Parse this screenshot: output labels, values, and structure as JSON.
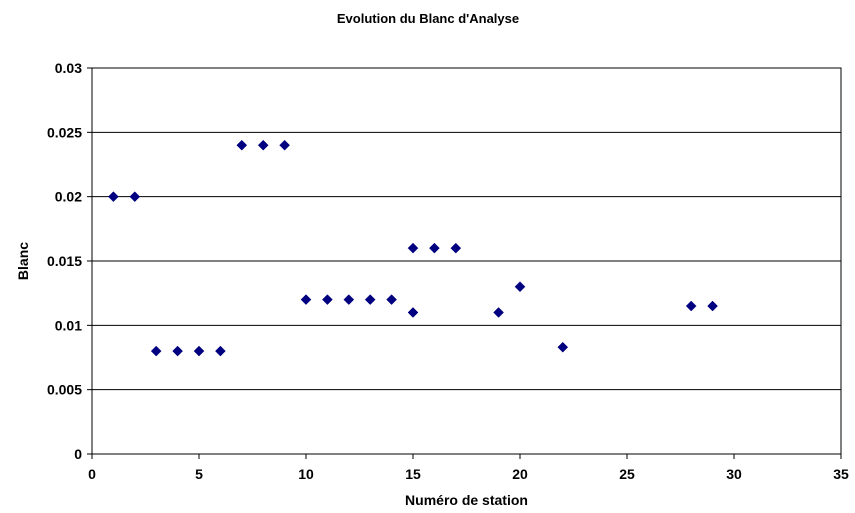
{
  "chart_data": {
    "type": "scatter",
    "title": "Evolution du Blanc d'Analyse",
    "xlabel": "Numéro de station",
    "ylabel": "Blanc",
    "xlim": [
      0,
      35
    ],
    "ylim": [
      0,
      0.03
    ],
    "x_ticks": [
      0,
      5,
      10,
      15,
      20,
      25,
      30,
      35
    ],
    "y_ticks": [
      0,
      0.005,
      0.01,
      0.015,
      0.02,
      0.025,
      0.03
    ],
    "x_tick_labels": [
      "0",
      "5",
      "10",
      "15",
      "20",
      "25",
      "30",
      "35"
    ],
    "y_tick_labels": [
      "0",
      "0.005",
      "0.01",
      "0.015",
      "0.02",
      "0.025",
      "0.03"
    ],
    "grid": "horizontal",
    "legend": "none",
    "marker": "diamond",
    "marker_color": "#000080",
    "series": [
      {
        "points": [
          {
            "x": 1,
            "y": 0.02
          },
          {
            "x": 2,
            "y": 0.02
          },
          {
            "x": 3,
            "y": 0.008
          },
          {
            "x": 4,
            "y": 0.008
          },
          {
            "x": 5,
            "y": 0.008
          },
          {
            "x": 6,
            "y": 0.008
          },
          {
            "x": 7,
            "y": 0.024
          },
          {
            "x": 8,
            "y": 0.024
          },
          {
            "x": 9,
            "y": 0.024
          },
          {
            "x": 10,
            "y": 0.012
          },
          {
            "x": 11,
            "y": 0.012
          },
          {
            "x": 12,
            "y": 0.012
          },
          {
            "x": 13,
            "y": 0.012
          },
          {
            "x": 14,
            "y": 0.012
          },
          {
            "x": 15,
            "y": 0.011
          },
          {
            "x": 15,
            "y": 0.016
          },
          {
            "x": 16,
            "y": 0.016
          },
          {
            "x": 17,
            "y": 0.016
          },
          {
            "x": 19,
            "y": 0.011
          },
          {
            "x": 20,
            "y": 0.013
          },
          {
            "x": 22,
            "y": 0.0083
          },
          {
            "x": 28,
            "y": 0.0115
          },
          {
            "x": 29,
            "y": 0.0115
          }
        ]
      }
    ]
  }
}
